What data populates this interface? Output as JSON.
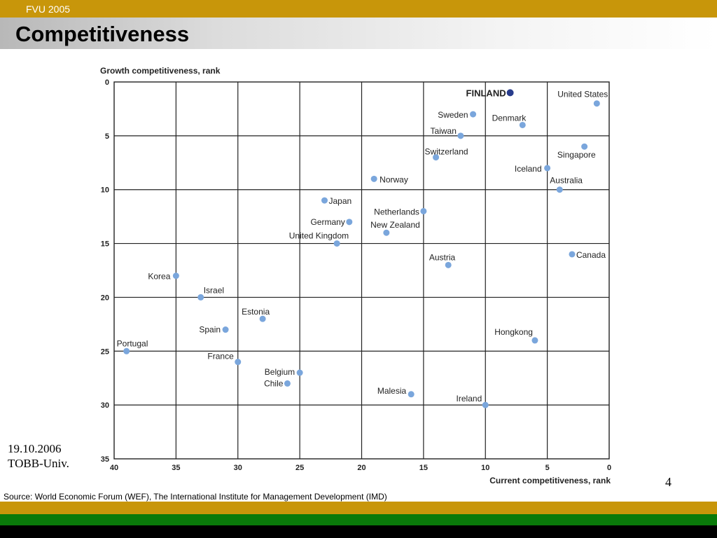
{
  "header": {
    "org": "FVU 2005",
    "title": "Competitiveness"
  },
  "footer": {
    "date": "19.10.2006",
    "institution": "TOBB-Univ.",
    "page_number": "4",
    "source": "Source: World Economic Forum (WEF), The International Institute for Management Development (IMD)"
  },
  "colors": {
    "gold": "#c8960a",
    "green": "#0a7a0a",
    "point": "#7aa6dc",
    "highlight": "#283c8c",
    "grid": "#222222"
  },
  "chart_data": {
    "type": "scatter",
    "title": "",
    "ylabel": "Growth competitiveness, rank",
    "xlabel": "Current competitiveness, rank",
    "xlim": [
      40,
      0
    ],
    "ylim": [
      0,
      35
    ],
    "x_ticks": [
      40,
      35,
      30,
      25,
      20,
      15,
      10,
      5,
      0
    ],
    "y_ticks": [
      0,
      5,
      10,
      15,
      20,
      25,
      30,
      35
    ],
    "grid": true,
    "points": [
      {
        "label": "FINLAND",
        "x": 8,
        "y": 1,
        "highlight": true
      },
      {
        "label": "United States",
        "x": 1,
        "y": 2
      },
      {
        "label": "Sweden",
        "x": 11,
        "y": 3
      },
      {
        "label": "Denmark",
        "x": 7,
        "y": 4
      },
      {
        "label": "Taiwan",
        "x": 12,
        "y": 5
      },
      {
        "label": "Singapore",
        "x": 2,
        "y": 6
      },
      {
        "label": "Switzerland",
        "x": 14,
        "y": 7
      },
      {
        "label": "Iceland",
        "x": 5,
        "y": 8
      },
      {
        "label": "Norway",
        "x": 19,
        "y": 9
      },
      {
        "label": "Australia",
        "x": 4,
        "y": 10
      },
      {
        "label": "Japan",
        "x": 23,
        "y": 11
      },
      {
        "label": "Netherlands",
        "x": 15,
        "y": 12
      },
      {
        "label": "Germany",
        "x": 21,
        "y": 13
      },
      {
        "label": "New Zealand",
        "x": 18,
        "y": 14
      },
      {
        "label": "United Kingdom",
        "x": 22,
        "y": 15
      },
      {
        "label": "Canada",
        "x": 3,
        "y": 16
      },
      {
        "label": "Austria",
        "x": 13,
        "y": 17
      },
      {
        "label": "Korea",
        "x": 35,
        "y": 18
      },
      {
        "label": "Israel",
        "x": 33,
        "y": 20
      },
      {
        "label": "Estonia",
        "x": 28,
        "y": 22
      },
      {
        "label": "Spain",
        "x": 31,
        "y": 23
      },
      {
        "label": "Hongkong",
        "x": 6,
        "y": 24
      },
      {
        "label": "Portugal",
        "x": 39,
        "y": 25
      },
      {
        "label": "France",
        "x": 30,
        "y": 26
      },
      {
        "label": "Belgium",
        "x": 25,
        "y": 27
      },
      {
        "label": "Chile",
        "x": 26,
        "y": 28
      },
      {
        "label": "Malesia",
        "x": 16,
        "y": 29
      },
      {
        "label": "Ireland",
        "x": 10,
        "y": 30
      }
    ]
  }
}
